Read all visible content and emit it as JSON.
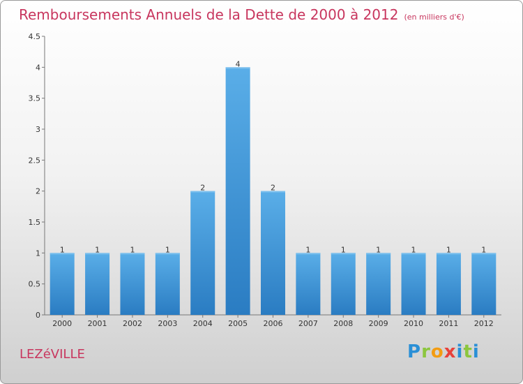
{
  "chart_data": {
    "type": "bar",
    "title": "Remboursements Annuels de la Dette de 2000 à 2012",
    "unit": "(en milliers d'€)",
    "categories": [
      "2000",
      "2001",
      "2002",
      "2003",
      "2004",
      "2005",
      "2006",
      "2007",
      "2008",
      "2009",
      "2010",
      "2011",
      "2012"
    ],
    "values": [
      1,
      1,
      1,
      1,
      2,
      4,
      2,
      1,
      1,
      1,
      1,
      1,
      1
    ],
    "data_labels": [
      "1",
      "1",
      "1",
      "1",
      "2",
      "4",
      "2",
      "1",
      "1",
      "1",
      "1",
      "1",
      "1"
    ],
    "y_ticks": [
      "0",
      "0.5",
      "1",
      "1.5",
      "2",
      "2.5",
      "3",
      "3.5",
      "4",
      "4.5"
    ],
    "ylim": [
      0,
      4.5
    ],
    "grid": false,
    "bar_color": "#3d95d8"
  },
  "commune": "LEZéVILLE",
  "logo": {
    "letters": [
      "P",
      "r",
      "o",
      "x",
      "i",
      "t",
      "i"
    ]
  }
}
